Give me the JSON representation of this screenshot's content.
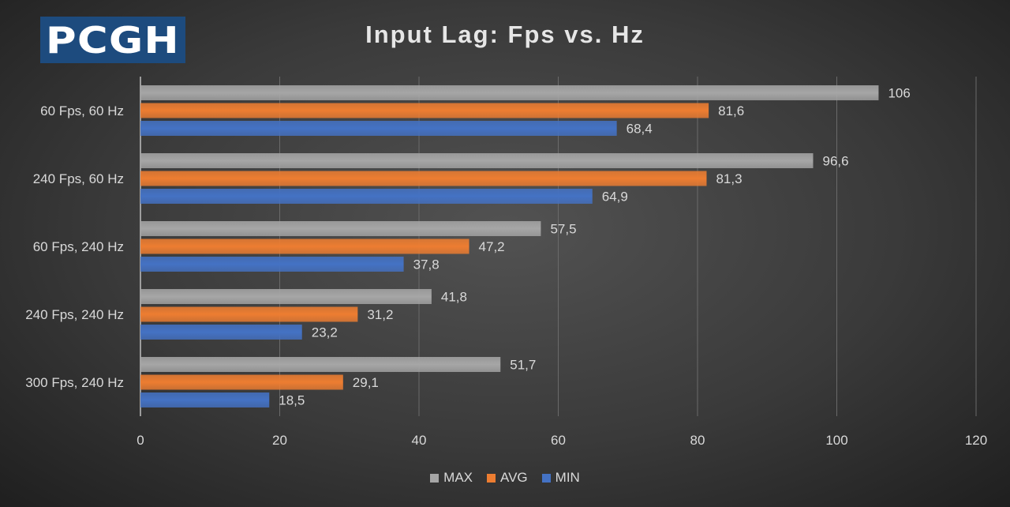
{
  "logo_text": "PCGH",
  "chart_data": {
    "type": "bar",
    "orientation": "horizontal",
    "title": "Input Lag: Fps vs. Hz",
    "categories": [
      "60 Fps, 60 Hz",
      "240 Fps, 60 Hz",
      "60 Fps, 240 Hz",
      "240 Fps, 240 Hz",
      "300 Fps, 240 Hz"
    ],
    "series": [
      {
        "name": "MAX",
        "color": "#a6a6a6",
        "values": [
          106,
          96.6,
          57.5,
          41.8,
          51.7
        ],
        "labels": [
          "106",
          "96,6",
          "57,5",
          "41,8",
          "51,7"
        ]
      },
      {
        "name": "AVG",
        "color": "#ed7d31",
        "values": [
          81.6,
          81.3,
          47.2,
          31.2,
          29.1
        ],
        "labels": [
          "81,6",
          "81,3",
          "47,2",
          "31,2",
          "29,1"
        ]
      },
      {
        "name": "MIN",
        "color": "#4472c4",
        "values": [
          68.4,
          64.9,
          37.8,
          23.2,
          18.5
        ],
        "labels": [
          "68,4",
          "64,9",
          "37,8",
          "23,2",
          "18,5"
        ]
      }
    ],
    "xlim": [
      0,
      120
    ],
    "xticks": [
      "0",
      "20",
      "40",
      "60",
      "80",
      "100",
      "120"
    ],
    "grid": true,
    "legend": "bottom"
  }
}
